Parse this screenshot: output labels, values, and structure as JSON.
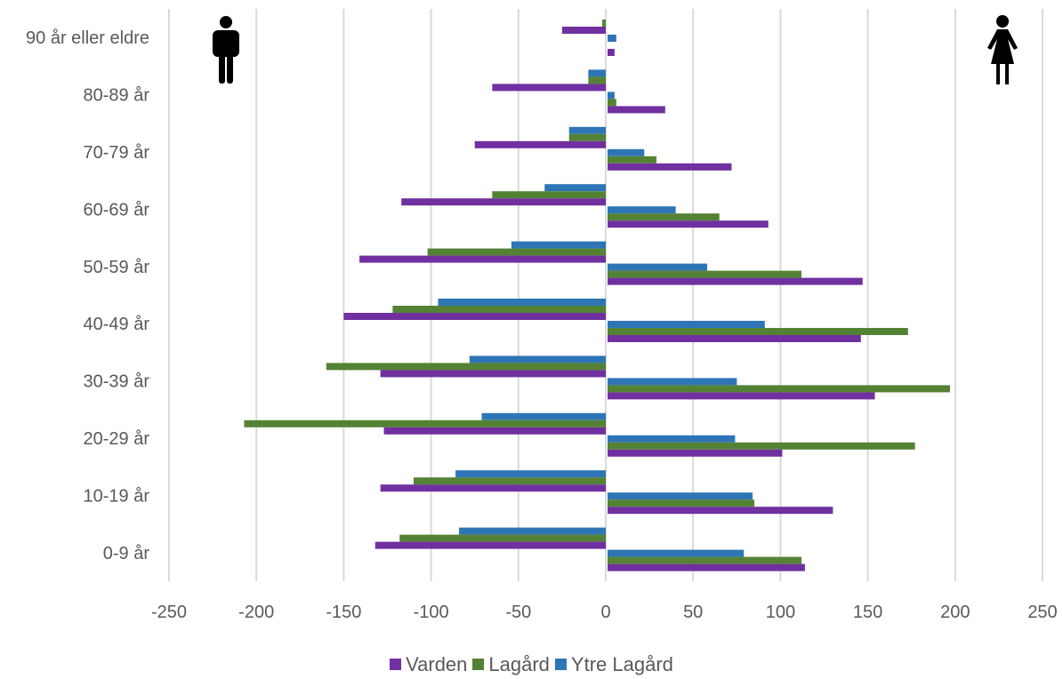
{
  "chart_data": {
    "type": "bar",
    "orientation": "horizontal",
    "description": "",
    "categories": [
      "0-9 år",
      "10-19 år",
      "20-29 år",
      "30-39 år",
      "40-49 år",
      "50-59 år",
      "60-69 år",
      "70-79 år",
      "80-89 år",
      "90 år eller eldre"
    ],
    "xlim": [
      -250,
      250
    ],
    "xticks": [
      -250,
      -200,
      -150,
      -100,
      -50,
      0,
      50,
      100,
      150,
      200,
      250
    ],
    "grid": true,
    "legend_position": "bottom",
    "series": [
      {
        "name": "Ytre Lagård",
        "color": "#2E75B6",
        "male": [
          -84,
          -86,
          -71,
          -78,
          -96,
          -54,
          -35,
          -21,
          -10,
          0
        ],
        "female": [
          78,
          83,
          73,
          74,
          90,
          57,
          39,
          21,
          4,
          5
        ]
      },
      {
        "name": "Lagård",
        "color": "#548235",
        "male": [
          -118,
          -110,
          -207,
          -160,
          -122,
          -102,
          -65,
          -21,
          -10,
          -2
        ],
        "female": [
          111,
          84,
          176,
          196,
          172,
          111,
          64,
          28,
          5,
          0
        ]
      },
      {
        "name": "Varden",
        "color": "#7030A0",
        "male": [
          -132,
          -129,
          -127,
          -129,
          -150,
          -141,
          -117,
          -75,
          -65,
          -25
        ],
        "female": [
          113,
          129,
          100,
          153,
          145,
          146,
          92,
          71,
          33,
          4
        ]
      }
    ],
    "icons": {
      "left": "male-person-icon",
      "right": "female-person-icon"
    }
  }
}
